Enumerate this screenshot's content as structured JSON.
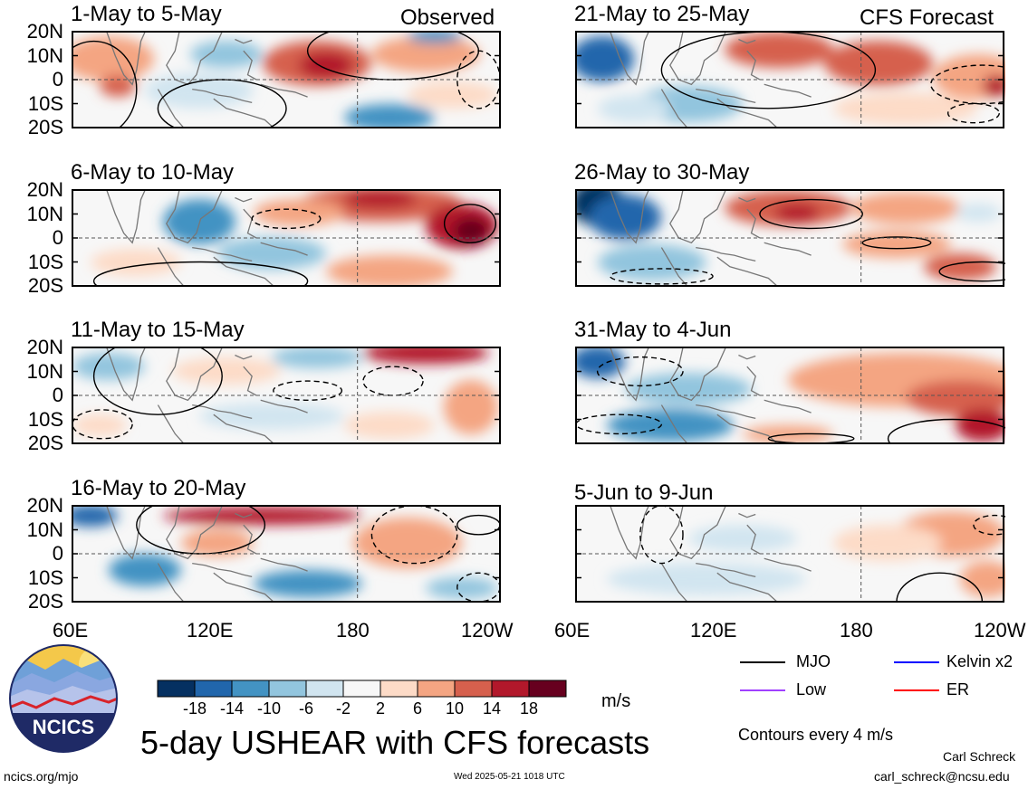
{
  "panels": [
    {
      "title": "1-May to 5-May",
      "tag": "Observed"
    },
    {
      "title": "21-May to 25-May",
      "tag": "CFS Forecast"
    },
    {
      "title": "6-May to 10-May",
      "tag": ""
    },
    {
      "title": "26-May to 30-May",
      "tag": ""
    },
    {
      "title": "11-May to 15-May",
      "tag": ""
    },
    {
      "title": "31-May to 4-Jun",
      "tag": ""
    },
    {
      "title": "16-May to 20-May",
      "tag": ""
    },
    {
      "title": "5-Jun to 9-Jun",
      "tag": ""
    }
  ],
  "lat_labels": [
    "20N",
    "10N",
    "0",
    "10S",
    "20S"
  ],
  "lon_labels": [
    "60E",
    "120E",
    "180",
    "120W"
  ],
  "colorbar": {
    "colors": [
      "#053061",
      "#2166ac",
      "#4393c3",
      "#92c5de",
      "#d1e5f0",
      "#f7f7f7",
      "#fddbc7",
      "#f4a582",
      "#d6604d",
      "#b2182b",
      "#67001f"
    ],
    "labels": [
      "-18",
      "-14",
      "-10",
      "-6",
      "-2",
      "2",
      "6",
      "10",
      "14",
      "18"
    ],
    "unit": "m/s"
  },
  "legend": {
    "items": [
      {
        "label": "MJO",
        "color": "#000000"
      },
      {
        "label": "Kelvin x2",
        "color": "#0000ff"
      },
      {
        "label": "Low",
        "color": "#a040ff"
      },
      {
        "label": "ER",
        "color": "#ff0000"
      }
    ],
    "contour_note": "Contours every 4 m/s"
  },
  "logo_text": "NCICS",
  "main_title": "5-day USHEAR with CFS forecasts",
  "footer": {
    "url": "ncics.org/mjo",
    "timestamp": "Wed 2025-05-21 1018 UTC",
    "author": "Carl Schreck",
    "email": "carl_schreck@ncsu.edu"
  }
}
